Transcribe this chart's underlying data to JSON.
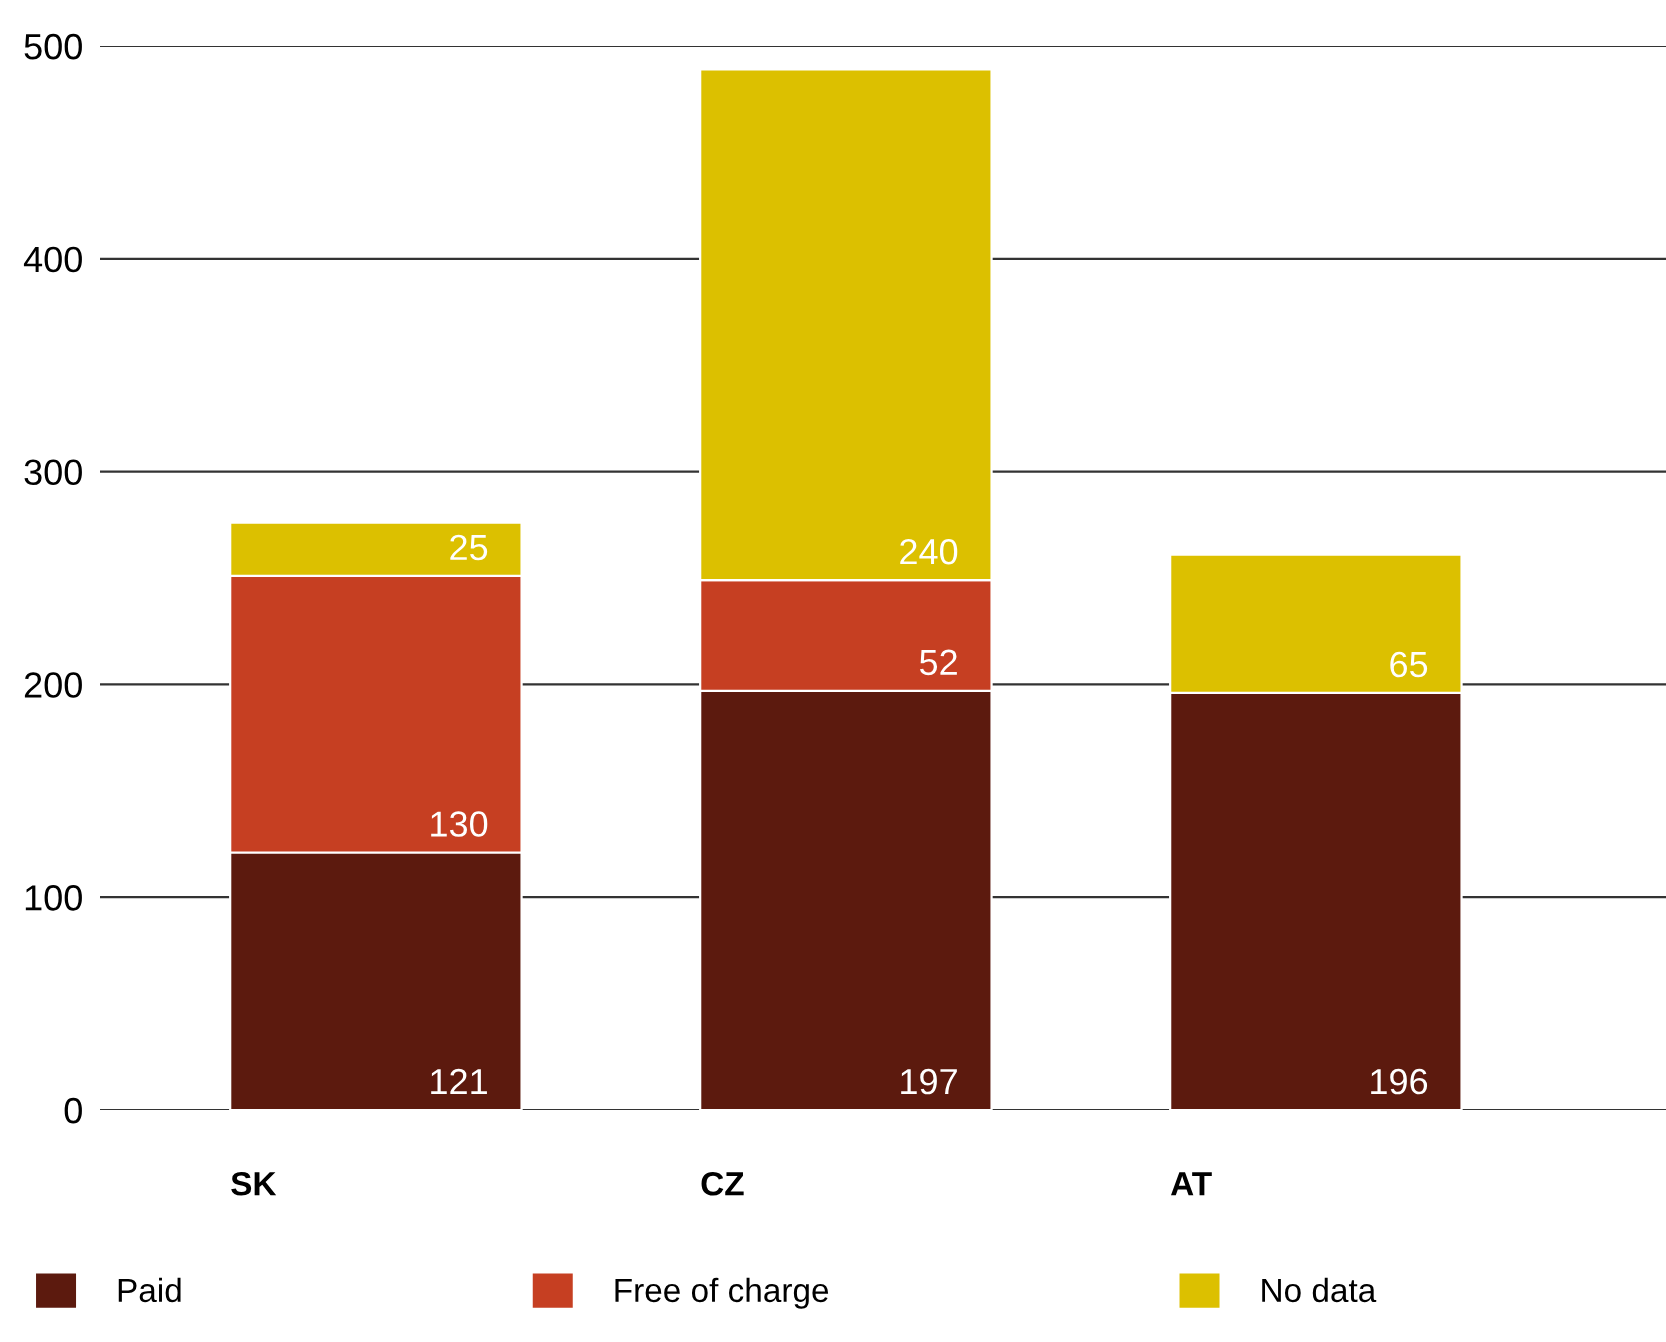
{
  "chart_data": {
    "type": "bar",
    "stacked": true,
    "categories": [
      "SK",
      "CZ",
      "AT"
    ],
    "series": [
      {
        "name": "Paid",
        "color": "#5c1a0e",
        "values": [
          121,
          197,
          196
        ]
      },
      {
        "name": "Free of charge",
        "color": "#c63f22",
        "values": [
          130,
          52,
          null
        ]
      },
      {
        "name": "No data",
        "color": "#dcc000",
        "values": [
          25,
          240,
          65
        ]
      }
    ],
    "ylim": [
      0,
      500
    ],
    "yticks": [
      0,
      100,
      200,
      300,
      400,
      500
    ],
    "grid": "y",
    "legend": "bottom",
    "data_labels": true
  }
}
